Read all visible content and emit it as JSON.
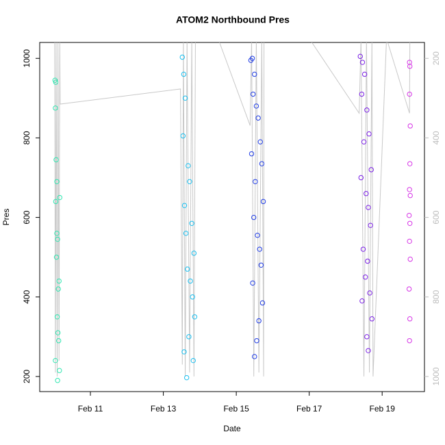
{
  "chart_data": {
    "type": "scatter",
    "title": "ATOM2 Northbound Pres",
    "x_label": "Date",
    "y_label": "Pres",
    "xlim": [
      9.61,
      20.16
    ],
    "xticks": [
      {
        "value": 11,
        "label": "Feb 11"
      },
      {
        "value": 13,
        "label": "Feb 13"
      },
      {
        "value": 15,
        "label": "Feb 15"
      },
      {
        "value": 17,
        "label": "Feb 17"
      },
      {
        "value": 19,
        "label": "Feb 19"
      }
    ],
    "ylim": [
      162,
      1040
    ],
    "yticks": [
      200,
      400,
      600,
      800,
      1000
    ],
    "y2lim": [
      1038,
      160
    ],
    "y2ticks": [
      200,
      400,
      600,
      800,
      1000
    ],
    "y2_color": "#bdbdbd",
    "series": [
      {
        "kind": "line",
        "axis": "y2",
        "color": "#c8c8c8",
        "x": [
          10.02,
          10.04,
          10.06,
          10.09,
          10.11,
          10.14,
          10.16,
          10.17,
          13.47,
          13.52,
          13.55,
          13.6,
          13.65,
          13.72,
          13.78,
          13.84,
          13.88,
          14.5,
          15.38,
          15.42,
          15.48,
          15.55,
          15.62,
          15.7,
          15.75,
          15.76,
          17.0,
          18.37,
          18.42,
          18.5,
          18.57,
          18.65,
          18.72,
          18.75,
          19.12,
          19.75,
          19.76
        ],
        "values": [
          150,
          990,
          150,
          1000,
          150,
          960,
          150,
          315,
          277,
          970,
          150,
          1000,
          150,
          990,
          150,
          1000,
          150,
          150,
          369,
          150,
          1000,
          150,
          990,
          150,
          1000,
          150,
          150,
          338,
          150,
          1000,
          150,
          990,
          150,
          1000,
          150,
          338,
          150
        ]
      },
      {
        "kind": "points",
        "color": "#2ee6b0",
        "x": [
          10.03,
          10.05,
          10.04,
          10.06,
          10.08,
          10.05,
          10.1,
          10.07,
          10.12,
          10.09,
          10.13,
          10.04,
          10.15,
          10.1,
          10.16,
          10.08,
          10.14,
          10.11
        ],
        "values": [
          945,
          940,
          875,
          745,
          690,
          640,
          545,
          500,
          420,
          350,
          290,
          240,
          215,
          190,
          650,
          560,
          440,
          310
        ]
      },
      {
        "kind": "points",
        "color": "#17bff0",
        "x": [
          13.52,
          13.56,
          13.6,
          13.54,
          13.68,
          13.72,
          13.58,
          13.78,
          13.62,
          13.84,
          13.66,
          13.74,
          13.8,
          13.86,
          13.7,
          13.57,
          13.82,
          13.64
        ],
        "values": [
          1003,
          960,
          900,
          805,
          730,
          690,
          630,
          585,
          560,
          510,
          470,
          440,
          400,
          350,
          300,
          262,
          240,
          197
        ]
      },
      {
        "kind": "points",
        "color": "#1f3ce6",
        "x": [
          15.4,
          15.44,
          15.5,
          15.46,
          15.55,
          15.6,
          15.66,
          15.42,
          15.7,
          15.52,
          15.74,
          15.48,
          15.58,
          15.64,
          15.68,
          15.45,
          15.72,
          15.62,
          15.56,
          15.5
        ],
        "values": [
          995,
          1000,
          960,
          910,
          880,
          850,
          790,
          760,
          735,
          690,
          640,
          600,
          555,
          520,
          480,
          435,
          385,
          340,
          290,
          250
        ]
      },
      {
        "kind": "points",
        "color": "#7a1ee6",
        "x": [
          18.4,
          18.46,
          18.52,
          18.44,
          18.58,
          18.64,
          18.5,
          18.7,
          18.42,
          18.56,
          18.62,
          18.68,
          18.48,
          18.6,
          18.54,
          18.66,
          18.45,
          18.72,
          18.58,
          18.62
        ],
        "values": [
          1005,
          990,
          960,
          910,
          870,
          810,
          790,
          720,
          700,
          660,
          625,
          580,
          520,
          490,
          450,
          410,
          390,
          345,
          300,
          265
        ]
      },
      {
        "kind": "points",
        "color": "#d633e6",
        "x": [
          19.75,
          19.76,
          19.75,
          19.77,
          19.76,
          19.75,
          19.77,
          19.74,
          19.76,
          19.75,
          19.77,
          19.74,
          19.76,
          19.75
        ],
        "values": [
          990,
          980,
          910,
          830,
          735,
          670,
          655,
          605,
          585,
          540,
          495,
          420,
          345,
          290
        ]
      }
    ]
  }
}
